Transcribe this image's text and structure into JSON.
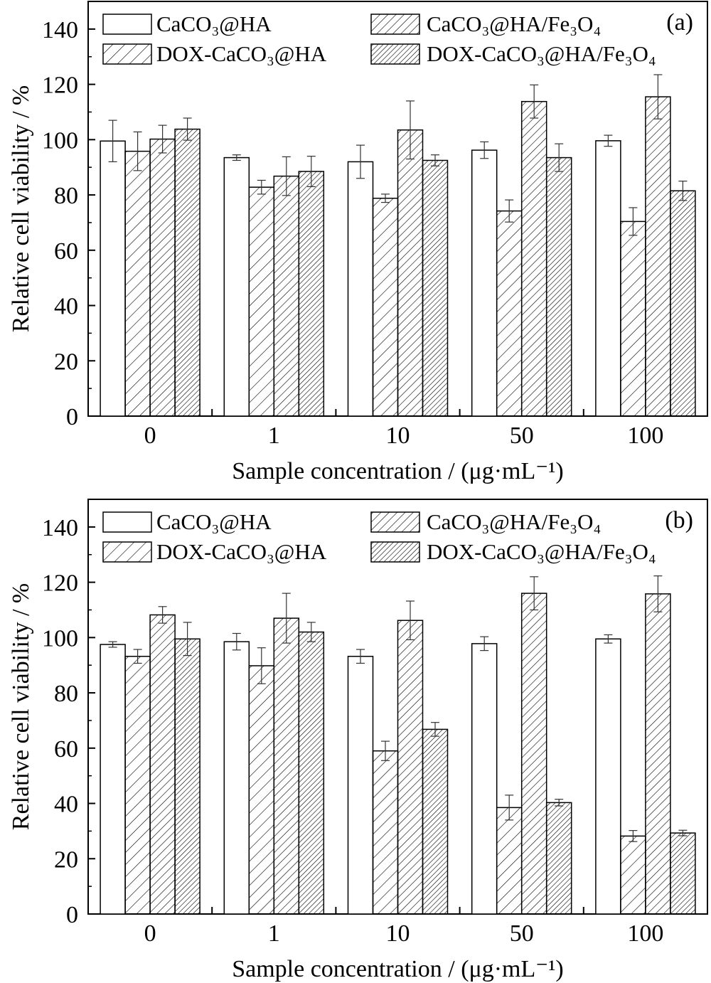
{
  "chart_data": [
    {
      "type": "bar",
      "panel_label": "(a)",
      "categories": [
        "0",
        "1",
        "10",
        "50",
        "100"
      ],
      "xlabel": "Sample concentration / (μg·mL⁻¹)",
      "ylabel": "Relative cell viability / %",
      "ylim": [
        0,
        150
      ],
      "yticks": [
        0,
        20,
        40,
        60,
        80,
        100,
        120,
        140
      ],
      "legend_position": "top",
      "series": [
        {
          "name": "CaCO₃@HA",
          "pattern": "open",
          "values": [
            99.5,
            93.5,
            92.0,
            96.2,
            99.6
          ],
          "errors": [
            7.5,
            1.0,
            6.0,
            3.0,
            2.0
          ]
        },
        {
          "name": "DOX-CaCO₃@HA",
          "pattern": "hatch-sparse",
          "values": [
            95.8,
            82.8,
            78.8,
            74.2,
            70.4
          ],
          "errors": [
            7.0,
            2.5,
            1.5,
            4.0,
            5.0
          ]
        },
        {
          "name": "CaCO₃@HA/Fe₃O₄",
          "pattern": "hatch-medium",
          "values": [
            100.2,
            86.8,
            103.5,
            113.8,
            115.5
          ],
          "errors": [
            5.0,
            7.0,
            10.5,
            6.0,
            8.0
          ]
        },
        {
          "name": "DOX-CaCO₃@HA/Fe₃O₄",
          "pattern": "hatch-dense",
          "values": [
            103.8,
            88.5,
            92.5,
            93.5,
            81.5
          ],
          "errors": [
            4.0,
            5.5,
            2.0,
            5.0,
            3.5
          ]
        }
      ]
    },
    {
      "type": "bar",
      "panel_label": "(b)",
      "categories": [
        "0",
        "1",
        "10",
        "50",
        "100"
      ],
      "xlabel": "Sample concentration / (μg·mL⁻¹)",
      "ylabel": "Relative cell viability / %",
      "ylim": [
        0,
        150
      ],
      "yticks": [
        0,
        20,
        40,
        60,
        80,
        100,
        120,
        140
      ],
      "legend_position": "top",
      "series": [
        {
          "name": "CaCO₃@HA",
          "pattern": "open",
          "values": [
            97.5,
            98.5,
            93.2,
            97.8,
            99.5
          ],
          "errors": [
            1.0,
            3.0,
            2.5,
            2.5,
            1.5
          ]
        },
        {
          "name": "DOX-CaCO₃@HA",
          "pattern": "hatch-sparse",
          "values": [
            93.2,
            89.8,
            59.0,
            38.5,
            28.2
          ],
          "errors": [
            2.5,
            6.5,
            3.5,
            4.5,
            2.0
          ]
        },
        {
          "name": "CaCO₃@HA/Fe₃O₄",
          "pattern": "hatch-medium",
          "values": [
            108.2,
            107.0,
            106.2,
            116.0,
            115.8
          ],
          "errors": [
            3.0,
            9.0,
            7.0,
            6.0,
            6.5
          ]
        },
        {
          "name": "DOX-CaCO₃@HA/Fe₃O₄",
          "pattern": "hatch-dense",
          "values": [
            99.5,
            102.0,
            66.8,
            40.3,
            29.3
          ],
          "errors": [
            6.0,
            3.5,
            2.5,
            1.2,
            1.0
          ]
        }
      ]
    }
  ]
}
